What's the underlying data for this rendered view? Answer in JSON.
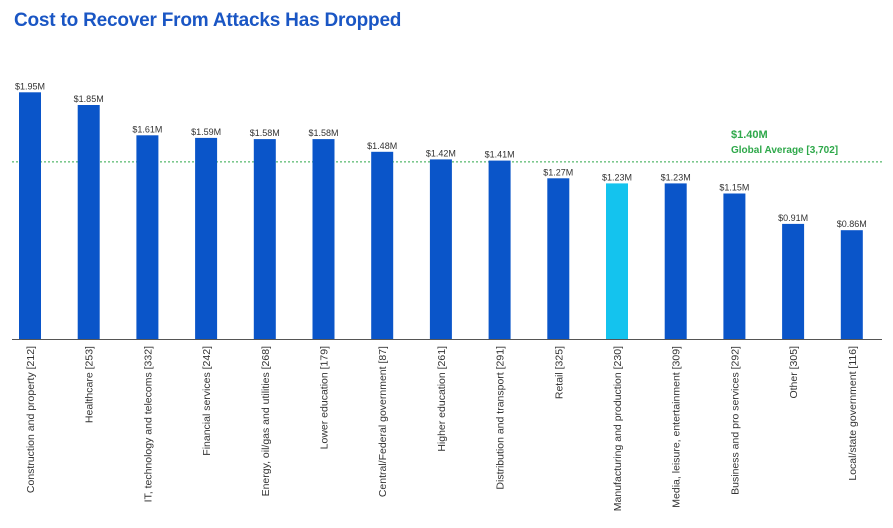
{
  "chart_data": {
    "type": "bar",
    "title": "Cost to Recover From Attacks Has Dropped",
    "categories": [
      "Construction and property [212]",
      "Healthcare [253]",
      "IT, technology and telecoms [332]",
      "Financial services [242]",
      "Energy, oil/gas and utilities [268]",
      "Lower education [179]",
      "Central/Federal government [87]",
      "Higher education [261]",
      "Distribution and transport [291]",
      "Retail [325]",
      "Manufacturing and production [230]",
      "Media, leisure, entertainment [309]",
      "Business and pro services [292]",
      "Other [305]",
      "Local/state government [116]"
    ],
    "values": [
      1.95,
      1.85,
      1.61,
      1.59,
      1.58,
      1.58,
      1.48,
      1.42,
      1.41,
      1.27,
      1.23,
      1.23,
      1.15,
      0.91,
      0.86
    ],
    "value_labels": [
      "$1.95M",
      "$1.85M",
      "$1.61M",
      "$1.59M",
      "$1.58M",
      "$1.58M",
      "$1.48M",
      "$1.42M",
      "$1.41M",
      "$1.27M",
      "$1.23M",
      "$1.23M",
      "$1.15M",
      "$0.91M",
      "$0.86M"
    ],
    "highlight_index": 10,
    "ylim": [
      0,
      2.0
    ],
    "grid": false,
    "average": {
      "value": 1.4,
      "value_label": "$1.40M",
      "label": "Global Average [3,702]"
    },
    "colors": {
      "bar": "#0a55c9",
      "highlight": "#14c3ee",
      "average": "#2ea84a",
      "title": "#1a56c4"
    }
  }
}
